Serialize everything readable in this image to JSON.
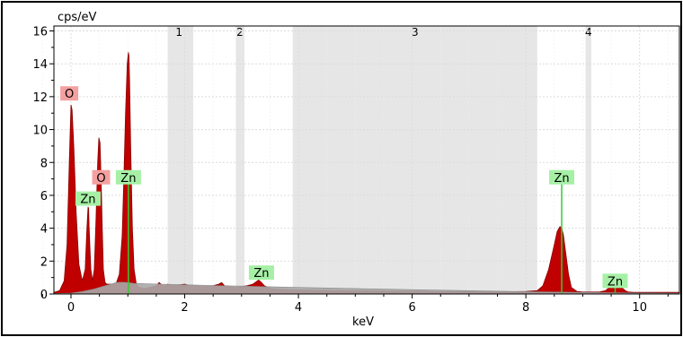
{
  "chart_data": {
    "type": "area",
    "title": "",
    "xlabel": "keV",
    "ylabel": "cps/eV",
    "xlim": [
      -0.3,
      10.7
    ],
    "ylim": [
      0,
      16.3
    ],
    "x_ticks": [
      0,
      2,
      4,
      6,
      8,
      10
    ],
    "y_ticks": [
      0,
      2,
      4,
      6,
      8,
      10,
      12,
      14,
      16
    ],
    "grid": true,
    "colors": {
      "spectrum": "#c00000",
      "background": "#a8a8a8",
      "marker_line": "#33cc33",
      "o_label_bg": "#f4a0a0",
      "zn_label_bg": "#a6f0a6",
      "region_band": "#e6e6e6"
    },
    "regions": [
      {
        "label": "1",
        "x_start": 1.7,
        "x_end": 2.15
      },
      {
        "label": "2",
        "x_start": 2.9,
        "x_end": 3.05
      },
      {
        "label": "3",
        "x_start": 3.9,
        "x_end": 8.2
      },
      {
        "label": "4",
        "x_start": 9.05,
        "x_end": 9.15
      }
    ],
    "series": [
      {
        "x": [
          -0.3,
          -0.2,
          -0.12,
          -0.07,
          -0.03,
          0.0,
          0.02,
          0.05,
          0.09,
          0.14,
          0.2,
          0.25,
          0.28,
          0.3,
          0.31,
          0.32,
          0.35,
          0.38,
          0.41,
          0.44,
          0.47,
          0.49,
          0.51,
          0.53,
          0.55,
          0.57,
          0.6,
          0.63,
          0.66,
          0.7,
          0.75,
          0.8,
          0.85,
          0.9,
          0.93,
          0.96,
          0.99,
          1.01,
          1.02,
          1.03,
          1.05,
          1.08,
          1.11,
          1.15,
          1.2,
          1.3,
          1.4,
          1.5,
          1.55,
          1.6,
          1.65,
          1.7,
          1.8,
          1.9,
          2.0,
          2.1,
          2.2,
          2.3,
          2.4,
          2.5,
          2.6,
          2.65,
          2.7,
          2.8,
          2.9,
          3.0,
          3.1,
          3.2,
          3.3,
          3.35,
          3.4,
          3.5,
          3.6,
          3.8,
          4.0,
          4.5,
          5.0,
          5.5,
          6.0,
          6.5,
          7.0,
          7.5,
          7.8,
          8.0,
          8.2,
          8.3,
          8.4,
          8.5,
          8.55,
          8.6,
          8.63,
          8.66,
          8.7,
          8.75,
          8.8,
          8.9,
          9.0,
          9.1,
          9.2,
          9.3,
          9.4,
          9.45,
          9.5,
          9.55,
          9.58,
          9.6,
          9.63,
          9.66,
          9.7,
          9.75,
          9.8,
          9.9,
          10.0,
          10.2,
          10.4,
          10.6,
          10.7
        ],
        "y": [
          0.1,
          0.2,
          0.8,
          3,
          8,
          11.5,
          11.2,
          9,
          5,
          1.8,
          0.8,
          1.5,
          4,
          5.3,
          5.2,
          4,
          1.5,
          0.8,
          1.5,
          4.5,
          8,
          9.5,
          9.2,
          7,
          4,
          1.5,
          0.7,
          0.6,
          0.6,
          0.6,
          0.6,
          0.7,
          1.2,
          3.5,
          7,
          11,
          14,
          14.7,
          14.5,
          13,
          9,
          4,
          1.5,
          0.6,
          0.4,
          0.35,
          0.4,
          0.5,
          0.7,
          0.55,
          0.5,
          0.6,
          0.5,
          0.55,
          0.6,
          0.5,
          0.5,
          0.45,
          0.45,
          0.5,
          0.6,
          0.7,
          0.5,
          0.45,
          0.4,
          0.45,
          0.5,
          0.6,
          0.85,
          0.7,
          0.5,
          0.35,
          0.3,
          0.28,
          0.25,
          0.22,
          0.2,
          0.18,
          0.17,
          0.15,
          0.15,
          0.14,
          0.14,
          0.15,
          0.2,
          0.5,
          1.5,
          3,
          3.8,
          4.1,
          4,
          3.6,
          2.5,
          1.2,
          0.4,
          0.15,
          0.12,
          0.12,
          0.12,
          0.13,
          0.2,
          0.35,
          0.55,
          0.75,
          0.8,
          0.82,
          0.75,
          0.55,
          0.35,
          0.2,
          0.12,
          0.1,
          0.1,
          0.1,
          0.1,
          0.1,
          0.1
        ]
      },
      {
        "x": [
          -0.3,
          0.0,
          0.2,
          0.4,
          0.6,
          0.8,
          0.9,
          1.0,
          1.1,
          1.3,
          1.6,
          2.0,
          2.5,
          3.0,
          3.5,
          4.0,
          5.0,
          6.0,
          7.0,
          8.0,
          8.5,
          9.0,
          9.5,
          10.0,
          10.7
        ],
        "y": [
          0.02,
          0.05,
          0.15,
          0.3,
          0.5,
          0.7,
          0.72,
          0.7,
          0.65,
          0.62,
          0.6,
          0.56,
          0.52,
          0.48,
          0.44,
          0.4,
          0.33,
          0.26,
          0.2,
          0.14,
          0.12,
          0.1,
          0.08,
          0.06,
          0.05
        ]
      }
    ],
    "element_markers": [
      {
        "element": "O",
        "x": -0.03,
        "label_y": 12.2,
        "line": false
      },
      {
        "element": "O",
        "x": 0.53,
        "label_y": 7.1,
        "line": false
      },
      {
        "element": "Zn",
        "x": 0.3,
        "label_y": 5.8,
        "line": false
      },
      {
        "element": "Zn",
        "x": 1.01,
        "label_y": 7.1,
        "line": true,
        "line_top": 7.1
      },
      {
        "element": "Zn",
        "x": 3.35,
        "label_y": 1.3,
        "line": false
      },
      {
        "element": "Zn",
        "x": 8.63,
        "label_y": 7.1,
        "line": true,
        "line_top": 7.1
      },
      {
        "element": "Zn",
        "x": 9.57,
        "label_y": 0.8,
        "line": true,
        "line_top": 0.9
      }
    ]
  }
}
